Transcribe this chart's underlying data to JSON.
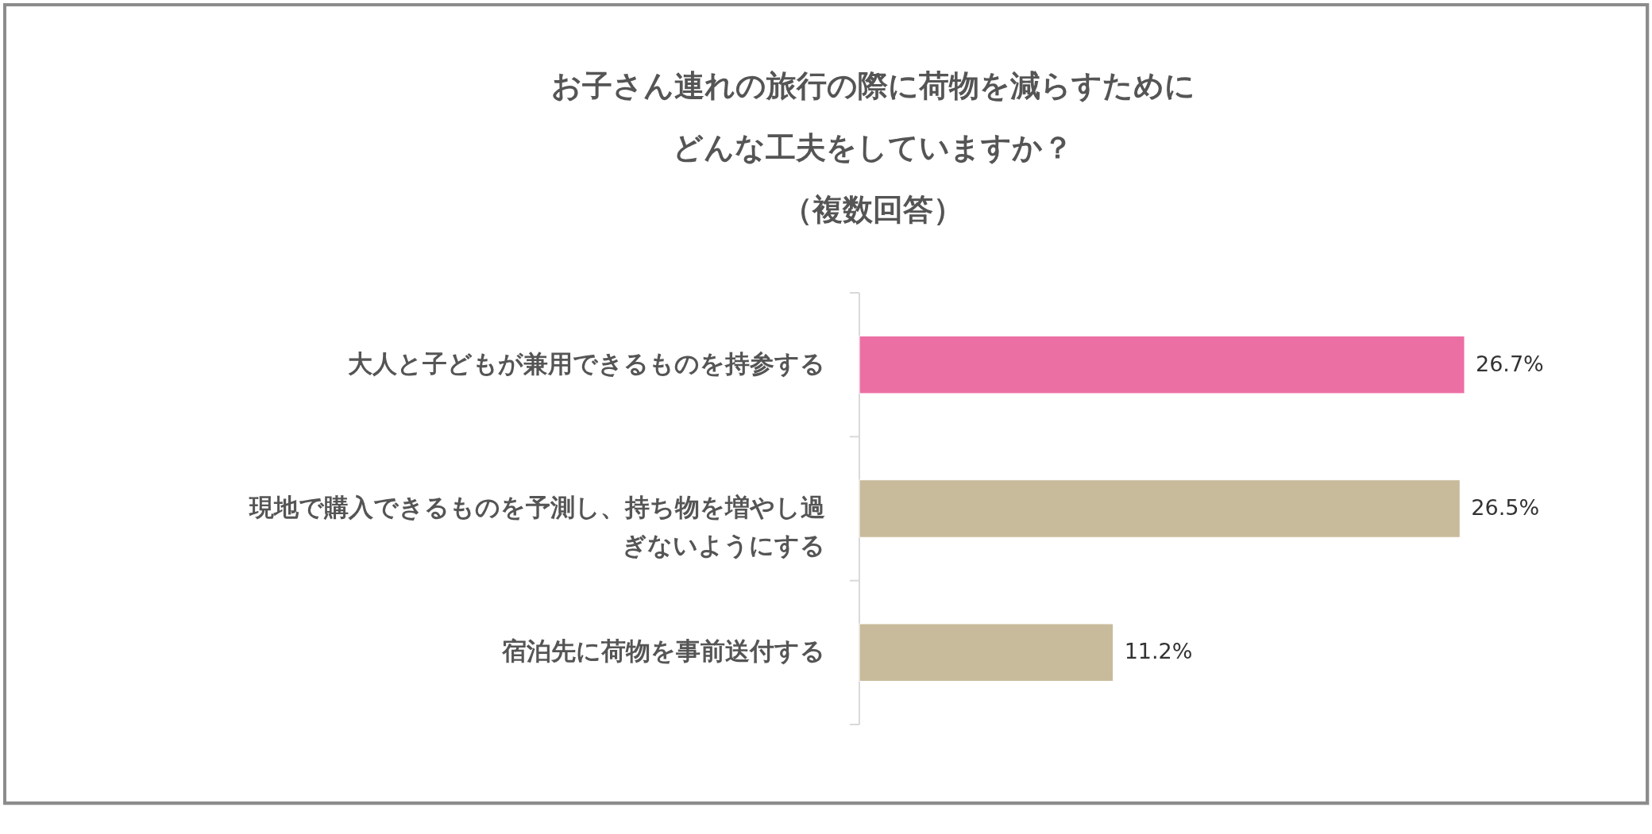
{
  "chart_data": {
    "type": "bar",
    "orientation": "horizontal",
    "title": "お子さん連れの旅行の際に荷物を減らすためにどんな工夫をしていますか？",
    "subtitle": "（複数回答）",
    "categories": [
      "大人と子どもが兼用できるものを持参する",
      "現地で購入できるものを予測し、持ち物を増やし過ぎないようにする",
      "宿泊先に荷物を事前送付する"
    ],
    "values": [
      26.7,
      26.5,
      11.2
    ],
    "colors": [
      "#ec6fa4",
      "#c8bb9b",
      "#c8bb9b"
    ],
    "value_labels": [
      "26.7%",
      "26.5%",
      "11.2%"
    ],
    "grid": false
  }
}
